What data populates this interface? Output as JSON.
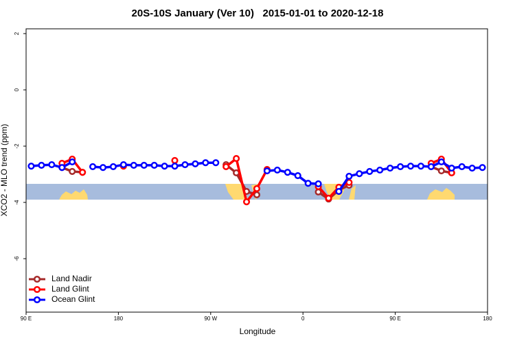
{
  "chart_data": {
    "type": "line",
    "title": "20S-10S January (Ver 10)   2015-01-01 to 2020-12-18",
    "x_label": "Longitude",
    "y_label": "XCO2 - MLO trend (ppm)",
    "x": [
      95,
      105,
      115,
      125,
      135,
      145,
      155,
      165,
      175,
      185,
      195,
      205,
      215,
      225,
      235,
      245,
      255,
      265,
      275,
      285,
      295,
      305,
      315,
      325,
      335,
      345,
      355,
      365,
      375,
      385,
      395,
      405,
      415,
      425,
      435,
      445,
      455,
      465,
      475,
      485,
      495,
      505,
      515,
      525,
      535
    ],
    "series": [
      {
        "name": "Land Nadir",
        "color": "#a52a2a",
        "values": [
          null,
          null,
          null,
          -2.76,
          -2.9,
          -2.93,
          null,
          null,
          null,
          null,
          null,
          null,
          null,
          null,
          null,
          null,
          null,
          null,
          null,
          -2.66,
          -2.95,
          -3.61,
          -3.73,
          null,
          null,
          null,
          null,
          null,
          -3.63,
          -3.88,
          -3.56,
          -3.39,
          null,
          null,
          null,
          null,
          null,
          null,
          null,
          -2.73,
          -2.88,
          -2.95,
          null,
          null,
          null
        ]
      },
      {
        "name": "Land Glint",
        "color": "#ff0000",
        "values": [
          null,
          null,
          null,
          -2.61,
          -2.46,
          -2.93,
          null,
          null,
          null,
          -2.71,
          null,
          null,
          null,
          null,
          -2.51,
          null,
          null,
          null,
          null,
          -2.73,
          -2.44,
          -3.98,
          -3.51,
          -2.83,
          null,
          null,
          null,
          null,
          -3.44,
          -3.85,
          -3.46,
          -3.29,
          null,
          null,
          null,
          null,
          null,
          null,
          null,
          -2.61,
          -2.46,
          -2.95,
          null,
          null,
          null
        ]
      },
      {
        "name": "Ocean Glint",
        "color": "#0000ff",
        "values": [
          -2.71,
          -2.68,
          -2.66,
          -2.76,
          -2.56,
          null,
          -2.73,
          -2.76,
          -2.73,
          -2.66,
          -2.68,
          -2.68,
          -2.68,
          -2.71,
          -2.71,
          -2.66,
          -2.63,
          -2.59,
          -2.59,
          null,
          null,
          null,
          null,
          -2.88,
          -2.85,
          -2.93,
          -3.05,
          -3.32,
          -3.34,
          null,
          -3.61,
          -3.07,
          -2.98,
          -2.9,
          -2.85,
          -2.78,
          -2.73,
          -2.71,
          -2.71,
          -2.73,
          -2.56,
          -2.78,
          -2.73,
          -2.78,
          -2.76
        ]
      }
    ],
    "xlim": [
      90,
      540
    ],
    "xticks": [
      {
        "value": 90,
        "label": "90 E"
      },
      {
        "value": 180,
        "label": "180"
      },
      {
        "value": 270,
        "label": "90 W"
      },
      {
        "value": 360,
        "label": "0"
      },
      {
        "value": 450,
        "label": "90 E"
      },
      {
        "value": 540,
        "label": "180"
      }
    ],
    "ylim": [
      -7.9,
      2.17
    ],
    "yticks": [
      -6,
      -4,
      -2,
      0,
      2
    ],
    "legend": "bottom-left"
  }
}
